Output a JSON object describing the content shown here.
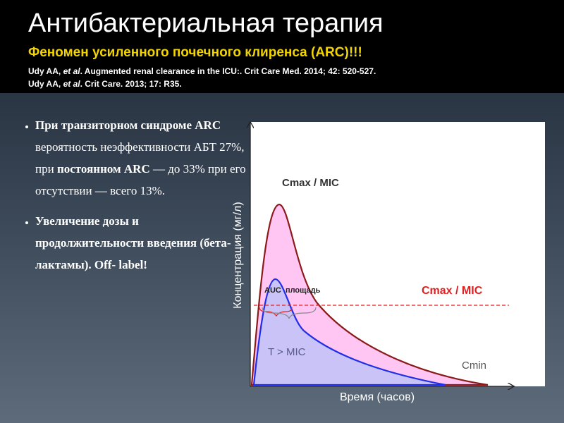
{
  "header": {
    "title": "Антибактериальная терапия",
    "subtitle": "Феномен усиленного почечного клиренса (ARC)!!!",
    "references": [
      [
        "Udy AA, ",
        "et al",
        ". Augmented renal clearance in the ICU:. Crit Care Med. 2014; 42: 520-527."
      ],
      [
        "Udy AA, ",
        "et al",
        ". Crit Care. 2013; 17: R35."
      ]
    ]
  },
  "bullets": [
    [
      {
        "text": "При транзиторном синдроме ARC",
        "bold": true
      },
      {
        "text": " вероятность неэффективности АБТ 27%, при ",
        "bold": false
      },
      {
        "text": "постоянном ARC",
        "bold": true
      },
      {
        "text": " — до 33% при его отсутствии — всего 13%.",
        "bold": false
      }
    ],
    [
      {
        "text": "Увеличение дозы и продолжительности введения (бета-лактамы). Off- label!",
        "bold": true
      }
    ]
  ],
  "diagram": {
    "y_axis_label": "Концентрация (мг/л)",
    "x_axis_label": "Время (часов)",
    "peak_label": "Cmax / MIC",
    "threshold_label": "Cmax / MIC",
    "auc_label": "AUC  площадь",
    "time_label": "T > MIC",
    "min_label": "Cmin"
  }
}
